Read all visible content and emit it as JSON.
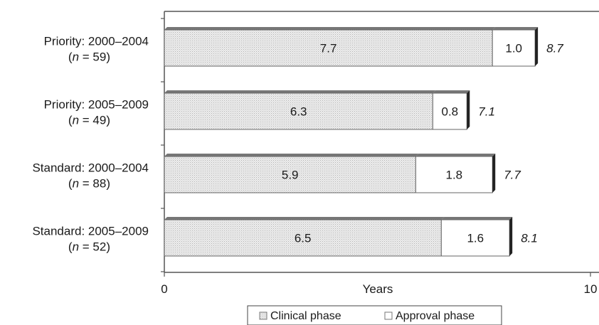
{
  "chart_data": {
    "type": "bar",
    "orientation": "horizontal",
    "stacked": true,
    "categories": [
      {
        "line1": "Priority: 2000–2004",
        "n_prefix": "(",
        "n_var": "n",
        "n_suffix": " = 59)"
      },
      {
        "line1": "Priority: 2005–2009",
        "n_prefix": "(",
        "n_var": "n",
        "n_suffix": " = 49)"
      },
      {
        "line1": "Standard: 2000–2004",
        "n_prefix": "(",
        "n_var": "n",
        "n_suffix": " = 88)"
      },
      {
        "line1": "Standard: 2005–2009",
        "n_prefix": "(",
        "n_var": "n",
        "n_suffix": " = 52)"
      }
    ],
    "series": [
      {
        "name": "Clinical phase",
        "values": [
          7.7,
          6.3,
          5.9,
          6.5
        ],
        "labels": [
          "7.7",
          "6.3",
          "5.9",
          "6.5"
        ],
        "color": "#e4e4e4"
      },
      {
        "name": "Approval phase",
        "values": [
          1.0,
          0.8,
          1.8,
          1.6
        ],
        "labels": [
          "1.0",
          "0.8",
          "1.8",
          "1.6"
        ],
        "color": "#ffffff"
      }
    ],
    "totals": [
      8.7,
      7.1,
      7.7,
      8.1
    ],
    "total_labels": [
      "8.7",
      "7.1",
      "7.7",
      "8.1"
    ],
    "xlabel": "Years",
    "xlim": [
      0,
      10
    ],
    "xtick_labels": [
      "0",
      "10"
    ],
    "legend_position": "bottom",
    "grid": false
  }
}
